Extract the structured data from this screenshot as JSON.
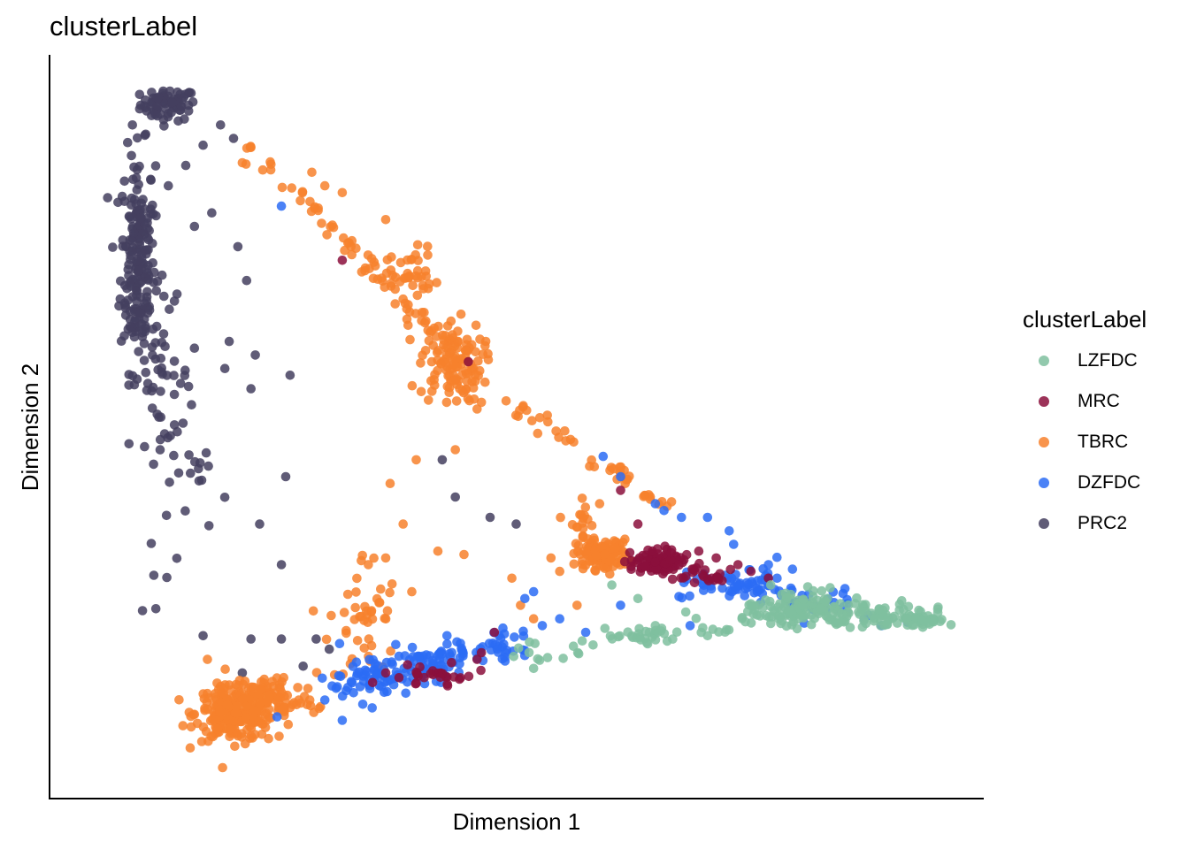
{
  "chart_data": {
    "type": "scatter",
    "title": "clusterLabel",
    "xlabel": "Dimension 1",
    "ylabel": "Dimension 2",
    "xlim": [
      0,
      100
    ],
    "ylim": [
      0,
      100
    ],
    "legend": {
      "title": "clusterLabel",
      "placement": "right",
      "items": [
        {
          "name": "LZFDC",
          "color": "#7fbf9f"
        },
        {
          "name": "MRC",
          "color": "#8b0f3c"
        },
        {
          "name": "TBRC",
          "color": "#f7812d"
        },
        {
          "name": "DZFDC",
          "color": "#2c6cf5"
        },
        {
          "name": "PRC2",
          "color": "#44405f"
        }
      ]
    },
    "series": [
      {
        "name": "PRC2",
        "color": "#44405f",
        "clusters": [
          {
            "x": 10,
            "y": 98,
            "sx": 1.6,
            "sy": 1.2,
            "n": 70
          },
          {
            "x": 6.5,
            "y": 75,
            "sx": 1.0,
            "sy": 8.0,
            "n": 200
          },
          {
            "x": 9,
            "y": 58,
            "sx": 1.8,
            "sy": 5.0,
            "n": 45
          },
          {
            "x": 12,
            "y": 38,
            "sx": 2.5,
            "sy": 8.0,
            "n": 25
          }
        ],
        "points": [
          [
            16,
            95
          ],
          [
            17.5,
            93
          ],
          [
            14,
            92
          ],
          [
            12,
            89
          ],
          [
            10,
            86
          ],
          [
            15,
            82
          ],
          [
            13,
            80
          ],
          [
            18,
            77
          ],
          [
            19,
            72
          ],
          [
            11,
            70
          ],
          [
            13,
            62
          ],
          [
            17,
            63
          ],
          [
            16.5,
            59
          ],
          [
            20,
            61
          ],
          [
            24,
            58
          ],
          [
            19.5,
            56
          ],
          [
            23.5,
            43
          ],
          [
            20.5,
            36
          ],
          [
            23,
            30
          ],
          [
            18.5,
            14
          ],
          [
            14,
            19.5
          ],
          [
            23,
            19
          ],
          [
            27,
            19
          ],
          [
            41.5,
            45.5
          ],
          [
            43,
            40
          ],
          [
            47,
            37
          ],
          [
            50,
            36
          ],
          [
            28.5,
            17.5
          ],
          [
            19.5,
            19
          ],
          [
            25.5,
            15
          ]
        ]
      },
      {
        "name": "TBRC",
        "color": "#f7812d",
        "clusters": [
          {
            "x": 17.5,
            "y": 8,
            "sx": 2.2,
            "sy": 2.0,
            "n": 230
          },
          {
            "x": 22,
            "y": 10,
            "sx": 2.5,
            "sy": 2.0,
            "n": 90
          },
          {
            "x": 32.5,
            "y": 22,
            "sx": 2.0,
            "sy": 5.0,
            "n": 45
          },
          {
            "x": 42.5,
            "y": 60,
            "sx": 1.8,
            "sy": 3.0,
            "n": 110
          },
          {
            "x": 37,
            "y": 73,
            "sx": 2.0,
            "sy": 2.0,
            "n": 40
          },
          {
            "x": 60,
            "y": 31.5,
            "sx": 1.5,
            "sy": 1.1,
            "n": 120
          },
          {
            "x": 57.5,
            "y": 36,
            "sx": 0.8,
            "sy": 2.5,
            "n": 20
          }
        ],
        "line": {
          "from": [
            19,
            92
          ],
          "to": [
            47,
            56
          ],
          "n": 70,
          "jitter": 0.6
        },
        "line2": {
          "from": [
            47,
            56
          ],
          "to": [
            68,
            38
          ],
          "n": 45,
          "jitter": 0.6
        },
        "points": [
          [
            26.5,
            88
          ],
          [
            28,
            86
          ],
          [
            30,
            85
          ],
          [
            35,
            81
          ],
          [
            31,
            77
          ],
          [
            40,
            71.5
          ],
          [
            42.5,
            66
          ],
          [
            43.5,
            56
          ],
          [
            42,
            54
          ],
          [
            46,
            54
          ],
          [
            45.5,
            53
          ],
          [
            43,
            47
          ],
          [
            38.5,
            45.5
          ],
          [
            35.5,
            42
          ],
          [
            37,
            36
          ],
          [
            35,
            31
          ],
          [
            33,
            30
          ],
          [
            41,
            32
          ],
          [
            49.5,
            28
          ],
          [
            50.5,
            24
          ],
          [
            54,
            31
          ],
          [
            55,
            29
          ],
          [
            57,
            24
          ],
          [
            52,
            22
          ],
          [
            44,
            31.5
          ],
          [
            38,
            26
          ],
          [
            27.5,
            9
          ],
          [
            25,
            10
          ],
          [
            14.5,
            16
          ],
          [
            16,
            12
          ]
        ]
      },
      {
        "name": "DZFDC",
        "color": "#2c6cf5",
        "clusters": [
          {
            "x": 33,
            "y": 13,
            "sx": 2.6,
            "sy": 1.6,
            "n": 60
          },
          {
            "x": 41,
            "y": 16,
            "sx": 2.5,
            "sy": 1.4,
            "n": 70
          },
          {
            "x": 48,
            "y": 18,
            "sx": 1.8,
            "sy": 1.2,
            "n": 30
          },
          {
            "x": 76,
            "y": 27,
            "sx": 3.0,
            "sy": 1.2,
            "n": 60
          },
          {
            "x": 84,
            "y": 24.5,
            "sx": 2.5,
            "sy": 1.0,
            "n": 30
          }
        ],
        "points": [
          [
            23,
            83
          ],
          [
            60,
            46
          ],
          [
            62,
            43
          ],
          [
            66,
            39
          ],
          [
            67,
            38
          ],
          [
            69,
            37
          ],
          [
            72,
            37
          ],
          [
            74.5,
            35
          ],
          [
            75,
            33
          ],
          [
            79,
            30
          ],
          [
            80,
            28
          ],
          [
            52,
            26
          ],
          [
            51,
            25
          ],
          [
            55,
            22
          ],
          [
            53,
            21
          ],
          [
            58,
            20
          ],
          [
            62,
            24
          ],
          [
            70,
            21
          ],
          [
            88,
            23
          ],
          [
            90,
            22
          ],
          [
            92,
            21
          ],
          [
            95,
            21.5
          ],
          [
            90.5,
            22.5
          ],
          [
            30,
            7
          ],
          [
            22.5,
            7.5
          ],
          [
            28,
            10
          ]
        ]
      },
      {
        "name": "MRC",
        "color": "#8b0f3c",
        "clusters": [
          {
            "x": 66,
            "y": 30.5,
            "sx": 1.6,
            "sy": 1.0,
            "n": 90
          },
          {
            "x": 71,
            "y": 28,
            "sx": 1.5,
            "sy": 0.8,
            "n": 25
          },
          {
            "x": 41,
            "y": 13.5,
            "sx": 2.5,
            "sy": 0.8,
            "n": 28
          }
        ],
        "points": [
          [
            30,
            75
          ],
          [
            44.5,
            60
          ],
          [
            62,
            41
          ],
          [
            64,
            36
          ],
          [
            71,
            32
          ],
          [
            73,
            31
          ],
          [
            77,
            29
          ],
          [
            75.5,
            30
          ],
          [
            79,
            28
          ],
          [
            46,
            17
          ],
          [
            47.5,
            20
          ],
          [
            45.5,
            16
          ],
          [
            35,
            14
          ],
          [
            38.5,
            12.5
          ]
        ]
      },
      {
        "name": "LZFDC",
        "color": "#7fbf9f",
        "clusters": [
          {
            "x": 83,
            "y": 23.5,
            "sx": 3.0,
            "sy": 1.4,
            "n": 110
          },
          {
            "x": 91,
            "y": 22.5,
            "sx": 3.0,
            "sy": 0.9,
            "n": 60
          },
          {
            "x": 97,
            "y": 22,
            "sx": 1.5,
            "sy": 0.5,
            "n": 35
          }
        ],
        "line": {
          "from": [
            50,
            16.5
          ],
          "to": [
            80,
            22.5
          ],
          "n": 60,
          "jitter": 0.8
        },
        "points": [
          [
            61,
            27
          ],
          [
            64,
            25
          ],
          [
            66,
            21
          ],
          [
            65,
            18.5
          ],
          [
            68,
            19
          ],
          [
            72,
            19.5
          ],
          [
            69.5,
            23
          ]
        ]
      }
    ]
  }
}
